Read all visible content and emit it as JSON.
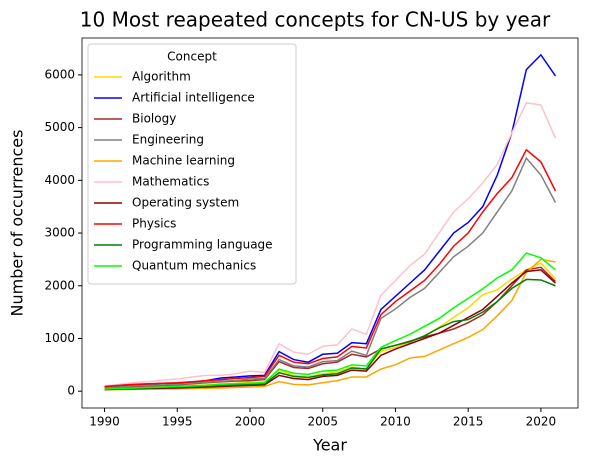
{
  "chart_data": {
    "type": "line",
    "title": "10 Most reapeated concepts for CN-US by year",
    "x_label": "Year",
    "y_label": "Number of occurrences",
    "x": [
      1990,
      1991,
      1992,
      1993,
      1994,
      1995,
      1996,
      1997,
      1998,
      1999,
      2000,
      2001,
      2002,
      2003,
      2004,
      2005,
      2006,
      2007,
      2008,
      2009,
      2010,
      2011,
      2012,
      2013,
      2014,
      2015,
      2016,
      2017,
      2018,
      2019,
      2020,
      2021
    ],
    "xlim": [
      1988.45,
      2022.55
    ],
    "xticks": [
      1990,
      1995,
      2000,
      2005,
      2010,
      2015,
      2020
    ],
    "ylim": [
      -319,
      6700
    ],
    "yticks": [
      0,
      1000,
      2000,
      3000,
      4000,
      5000,
      6000
    ],
    "legend_title": "Concept",
    "legend_position": "upper-left",
    "grid": false,
    "series": [
      {
        "name": "Algorithm",
        "color": "#ffd700",
        "values": [
          50,
          60,
          70,
          80,
          90,
          100,
          110,
          120,
          140,
          150,
          170,
          180,
          400,
          300,
          270,
          330,
          360,
          460,
          420,
          760,
          830,
          930,
          1050,
          1210,
          1400,
          1580,
          1830,
          1920,
          2130,
          2300,
          2430,
          2130
        ]
      },
      {
        "name": "Artificial intelligence",
        "color": "#0000ff",
        "values": [
          80,
          100,
          110,
          130,
          150,
          150,
          170,
          200,
          250,
          270,
          290,
          300,
          750,
          600,
          550,
          700,
          720,
          920,
          900,
          1550,
          1800,
          2050,
          2300,
          2650,
          3000,
          3200,
          3500,
          4100,
          4900,
          6100,
          6380,
          5980
        ]
      },
      {
        "name": "Biology",
        "color": "#a52a2a",
        "values": [
          70,
          80,
          90,
          100,
          110,
          120,
          140,
          160,
          180,
          190,
          200,
          220,
          560,
          450,
          430,
          520,
          550,
          700,
          650,
          800,
          870,
          950,
          1030,
          1100,
          1180,
          1300,
          1450,
          1700,
          2000,
          2300,
          2350,
          2080
        ]
      },
      {
        "name": "Engineering",
        "color": "#808080",
        "values": [
          60,
          80,
          100,
          110,
          120,
          130,
          150,
          170,
          190,
          200,
          230,
          240,
          600,
          480,
          460,
          560,
          580,
          760,
          680,
          1380,
          1560,
          1780,
          1950,
          2250,
          2550,
          2750,
          3000,
          3400,
          3800,
          4420,
          4100,
          3580
        ]
      },
      {
        "name": "Machine learning",
        "color": "#ffa500",
        "values": [
          30,
          30,
          35,
          40,
          40,
          45,
          50,
          55,
          60,
          70,
          80,
          90,
          180,
          130,
          120,
          160,
          200,
          270,
          270,
          420,
          500,
          630,
          660,
          780,
          900,
          1020,
          1170,
          1430,
          1720,
          2250,
          2500,
          2450
        ]
      },
      {
        "name": "Mathematics",
        "color": "#ffc0cb",
        "values": [
          100,
          130,
          160,
          180,
          210,
          230,
          270,
          300,
          300,
          330,
          380,
          360,
          900,
          740,
          700,
          850,
          880,
          1180,
          1080,
          1820,
          2100,
          2380,
          2600,
          3000,
          3400,
          3650,
          3950,
          4300,
          4900,
          5470,
          5430,
          4800
        ]
      },
      {
        "name": "Operating system",
        "color": "#8b0000",
        "values": [
          30,
          40,
          45,
          50,
          55,
          60,
          70,
          80,
          90,
          100,
          110,
          120,
          300,
          240,
          220,
          280,
          300,
          400,
          380,
          680,
          800,
          900,
          1000,
          1100,
          1250,
          1400,
          1550,
          1800,
          2050,
          2270,
          2300,
          2050
        ]
      },
      {
        "name": "Physics",
        "color": "#ff0000",
        "values": [
          90,
          110,
          130,
          140,
          150,
          160,
          180,
          200,
          220,
          240,
          260,
          280,
          680,
          550,
          520,
          620,
          650,
          850,
          820,
          1450,
          1700,
          1900,
          2100,
          2400,
          2750,
          3000,
          3400,
          3750,
          4050,
          4580,
          4350,
          3800
        ]
      },
      {
        "name": "Programming language",
        "color": "#008000",
        "values": [
          40,
          50,
          55,
          60,
          70,
          80,
          90,
          100,
          110,
          120,
          130,
          140,
          350,
          280,
          260,
          310,
          330,
          440,
          420,
          800,
          870,
          940,
          1050,
          1200,
          1320,
          1360,
          1500,
          1700,
          1950,
          2120,
          2110,
          2000
        ]
      },
      {
        "name": "Quantum mechanics",
        "color": "#00ff00",
        "values": [
          40,
          50,
          60,
          70,
          80,
          90,
          100,
          110,
          130,
          140,
          150,
          160,
          420,
          340,
          320,
          380,
          400,
          500,
          480,
          830,
          960,
          1080,
          1230,
          1380,
          1580,
          1760,
          1940,
          2150,
          2300,
          2620,
          2530,
          2300
        ]
      }
    ]
  }
}
